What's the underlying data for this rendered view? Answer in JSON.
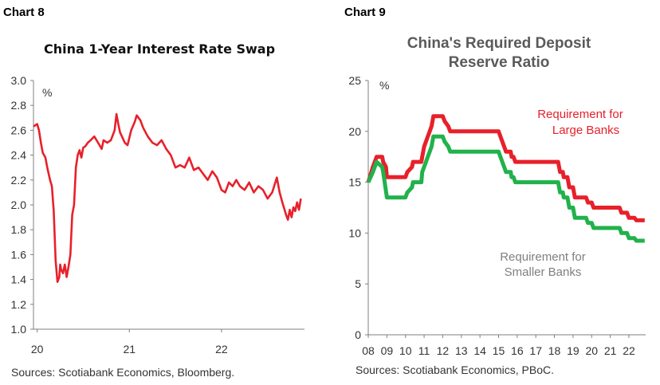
{
  "colors": {
    "red": "#e8202a",
    "green": "#21b24b",
    "axis": "#7f7f7f"
  },
  "chart_data": [
    {
      "label": "Chart 8",
      "type": "line",
      "title": "China 1-Year Interest Rate Swap",
      "ylabel": "%",
      "ylim": [
        1.0,
        3.0
      ],
      "yticks": [
        "3.0",
        "2.8",
        "2.6",
        "2.4",
        "2.2",
        "2.0",
        "1.8",
        "1.6",
        "1.4",
        "1.2",
        "1.0"
      ],
      "xticks": [
        "20",
        "21",
        "22"
      ],
      "source": "Sources: Scotiabank Economics, Bloomberg.",
      "series": [
        {
          "color": "#e8202a",
          "x": [
            2019.96,
            2020.0,
            2020.02,
            2020.04,
            2020.06,
            2020.09,
            2020.11,
            2020.14,
            2020.16,
            2020.18,
            2020.2,
            2020.22,
            2020.24,
            2020.25,
            2020.26,
            2020.28,
            2020.3,
            2020.32,
            2020.34,
            2020.36,
            2020.38,
            2020.4,
            2020.42,
            2020.44,
            2020.46,
            2020.48,
            2020.5,
            2020.52,
            2020.55,
            2020.58,
            2020.62,
            2020.66,
            2020.7,
            2020.72,
            2020.76,
            2020.8,
            2020.84,
            2020.86,
            2020.88,
            2020.9,
            2020.92,
            2020.95,
            2020.98,
            2021.02,
            2021.06,
            2021.08,
            2021.1,
            2021.12,
            2021.15,
            2021.2,
            2021.25,
            2021.3,
            2021.35,
            2021.4,
            2021.45,
            2021.5,
            2021.55,
            2021.6,
            2021.65,
            2021.7,
            2021.75,
            2021.8,
            2021.85,
            2021.9,
            2021.95,
            2022.0,
            2022.04,
            2022.08,
            2022.12,
            2022.16,
            2022.2,
            2022.25,
            2022.3,
            2022.35,
            2022.4,
            2022.45,
            2022.5,
            2022.55,
            2022.6,
            2022.63,
            2022.66,
            2022.68,
            2022.7,
            2022.72,
            2022.74,
            2022.76,
            2022.78,
            2022.8,
            2022.82,
            2022.84,
            2022.86
          ],
          "y": [
            2.63,
            2.65,
            2.6,
            2.5,
            2.42,
            2.38,
            2.3,
            2.2,
            2.15,
            1.95,
            1.55,
            1.38,
            1.42,
            1.52,
            1.48,
            1.45,
            1.52,
            1.42,
            1.5,
            1.6,
            1.92,
            2.0,
            2.3,
            2.4,
            2.44,
            2.38,
            2.46,
            2.47,
            2.5,
            2.52,
            2.55,
            2.5,
            2.45,
            2.52,
            2.5,
            2.52,
            2.6,
            2.73,
            2.65,
            2.58,
            2.55,
            2.5,
            2.48,
            2.6,
            2.67,
            2.72,
            2.7,
            2.68,
            2.62,
            2.55,
            2.5,
            2.48,
            2.52,
            2.45,
            2.4,
            2.3,
            2.32,
            2.3,
            2.38,
            2.28,
            2.3,
            2.25,
            2.2,
            2.27,
            2.22,
            2.12,
            2.1,
            2.18,
            2.15,
            2.2,
            2.15,
            2.12,
            2.18,
            2.1,
            2.15,
            2.12,
            2.05,
            2.1,
            2.22,
            2.1,
            2.02,
            1.97,
            1.92,
            1.88,
            1.96,
            1.9,
            1.98,
            1.95,
            2.02,
            1.96,
            2.05
          ]
        }
      ]
    },
    {
      "label": "Chart 9",
      "type": "line",
      "title": "China's Required Deposit Reserve Ratio",
      "title_lines": [
        "China's Required Deposit",
        "Reserve Ratio"
      ],
      "ylabel": "%",
      "ylim": [
        0,
        25
      ],
      "yticks": [
        "25",
        "20",
        "15",
        "10",
        "5",
        "0"
      ],
      "xticks": [
        "08",
        "09",
        "10",
        "11",
        "12",
        "13",
        "14",
        "15",
        "16",
        "17",
        "18",
        "19",
        "20",
        "21",
        "22"
      ],
      "source": "Sources: Scotiabank Economics, PBoC.",
      "series": [
        {
          "name": "Requirement for Large Banks",
          "name_lines": [
            "Requirement for",
            "Large Banks"
          ],
          "color": "#e8202a",
          "x": [
            2008.0,
            2008.25,
            2008.45,
            2008.75,
            2008.8,
            2008.95,
            2009.0,
            2010.0,
            2010.1,
            2010.35,
            2010.4,
            2010.85,
            2010.9,
            2010.95,
            2011.0,
            2011.1,
            2011.2,
            2011.3,
            2011.4,
            2011.45,
            2011.5,
            2012.0,
            2012.1,
            2012.3,
            2012.4,
            2015.0,
            2015.1,
            2015.3,
            2015.4,
            2015.65,
            2015.7,
            2015.8,
            2015.9,
            2016.1,
            2016.2,
            2018.2,
            2018.3,
            2018.45,
            2018.5,
            2018.7,
            2018.8,
            2019.0,
            2019.1,
            2019.7,
            2019.8,
            2020.0,
            2020.1,
            2021.5,
            2021.6,
            2021.9,
            2022.0,
            2022.3,
            2022.4,
            2022.85
          ],
          "y": [
            15.0,
            16.5,
            17.5,
            17.5,
            17.0,
            16.5,
            15.5,
            15.5,
            16.0,
            16.5,
            17.0,
            17.0,
            17.5,
            18.0,
            18.5,
            19.0,
            19.5,
            20.0,
            20.5,
            21.0,
            21.5,
            21.5,
            21.0,
            20.5,
            20.0,
            20.0,
            19.5,
            18.5,
            18.0,
            18.0,
            17.5,
            17.5,
            17.0,
            17.0,
            17.0,
            17.0,
            16.0,
            16.0,
            15.5,
            15.5,
            14.5,
            14.5,
            13.5,
            13.5,
            13.0,
            13.0,
            12.5,
            12.5,
            12.0,
            12.0,
            11.5,
            11.5,
            11.25,
            11.25
          ]
        },
        {
          "name": "Requirement for Smaller Banks",
          "name_lines": [
            "Requirement for",
            "Smaller Banks"
          ],
          "color": "#21b24b",
          "x": [
            2008.0,
            2008.25,
            2008.45,
            2008.75,
            2008.8,
            2009.0,
            2010.0,
            2010.1,
            2010.35,
            2010.4,
            2010.85,
            2010.9,
            2011.1,
            2011.2,
            2011.3,
            2011.4,
            2011.5,
            2012.0,
            2012.1,
            2012.3,
            2012.4,
            2015.0,
            2015.1,
            2015.3,
            2015.4,
            2015.65,
            2015.7,
            2015.8,
            2015.9,
            2018.2,
            2018.3,
            2018.45,
            2018.5,
            2018.7,
            2018.8,
            2019.0,
            2019.1,
            2019.7,
            2019.8,
            2020.0,
            2020.1,
            2021.5,
            2021.6,
            2021.9,
            2022.0,
            2022.3,
            2022.4,
            2022.85
          ],
          "y": [
            15.0,
            16.0,
            17.0,
            16.5,
            16.0,
            13.5,
            13.5,
            14.0,
            14.5,
            15.0,
            15.0,
            16.0,
            17.0,
            17.5,
            18.0,
            18.5,
            19.5,
            19.5,
            19.0,
            18.5,
            18.0,
            18.0,
            17.5,
            16.5,
            16.0,
            16.0,
            15.5,
            15.5,
            15.0,
            15.0,
            14.0,
            14.0,
            13.5,
            13.5,
            12.5,
            12.5,
            11.5,
            11.5,
            11.0,
            11.0,
            10.5,
            10.5,
            10.0,
            10.0,
            9.5,
            9.5,
            9.25,
            9.25
          ]
        }
      ]
    }
  ]
}
